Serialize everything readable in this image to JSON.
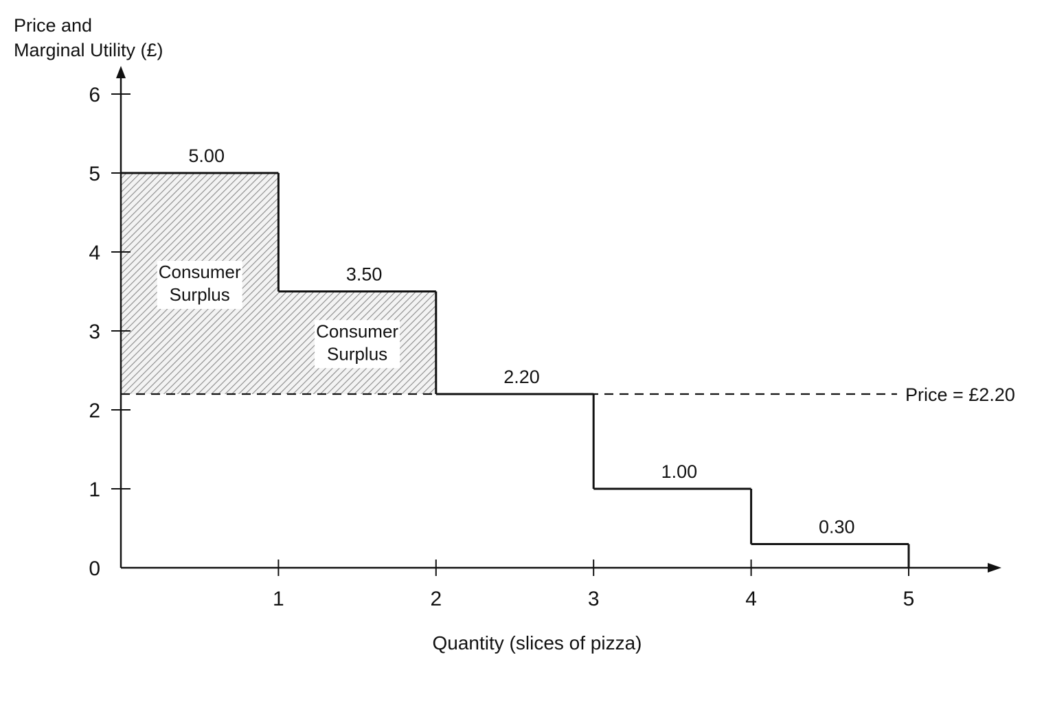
{
  "chart_data": {
    "type": "bar",
    "subtype": "step",
    "ylabel_lines": [
      "Price and",
      "Marginal Utility (£)"
    ],
    "xlabel": "Quantity (slices of pizza)",
    "xlim": [
      0,
      5.6
    ],
    "ylim": [
      0,
      6
    ],
    "x_ticks": [
      1,
      2,
      3,
      4,
      5
    ],
    "y_ticks": [
      0,
      1,
      2,
      3,
      4,
      5,
      6
    ],
    "grid": false,
    "bars": [
      {
        "x_start": 0,
        "x_end": 1,
        "value": 5.0,
        "label": "5.00"
      },
      {
        "x_start": 1,
        "x_end": 2,
        "value": 3.5,
        "label": "3.50"
      },
      {
        "x_start": 2,
        "x_end": 3,
        "value": 2.2,
        "label": "2.20"
      },
      {
        "x_start": 3,
        "x_end": 4,
        "value": 1.0,
        "label": "1.00"
      },
      {
        "x_start": 4,
        "x_end": 5,
        "value": 0.3,
        "label": "0.30"
      }
    ],
    "price_line": {
      "value": 2.2,
      "label": "Price = £2.20",
      "style": "dashed"
    },
    "shaded_areas": [
      {
        "x_start": 0,
        "x_end": 1,
        "y_low": 2.2,
        "y_high": 5.0,
        "label_lines": [
          "Consumer",
          "Surplus"
        ]
      },
      {
        "x_start": 1,
        "x_end": 2,
        "y_low": 2.2,
        "y_high": 3.5,
        "label_lines": [
          "Consumer",
          "Surplus"
        ]
      }
    ],
    "colors": {
      "line": "#111111",
      "hatch": "#8a8a8a",
      "hatch_bg": "#f3f3f3"
    }
  }
}
